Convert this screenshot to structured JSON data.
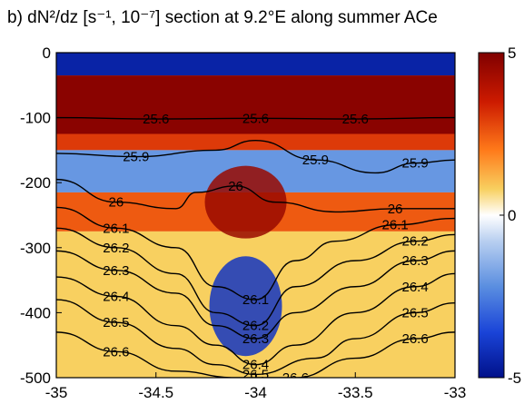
{
  "chart_data": {
    "type": "heatmap",
    "panel": "b)",
    "title": "b) dN²/dz [s⁻¹, 10⁻⁷] section at 9.2°E along summer ACe",
    "xlim": [
      -35,
      -33
    ],
    "ylim": [
      -500,
      0
    ],
    "x_ticks": [
      -35,
      -34.5,
      -34,
      -33.5,
      -33
    ],
    "y_ticks": [
      0,
      -100,
      -200,
      -300,
      -400,
      -500
    ],
    "colorbar": {
      "min": -5,
      "max": 5,
      "ticks": [
        5,
        0,
        -5
      ],
      "colormap": "blue-white-red"
    },
    "field_bands": [
      {
        "depth": [
          0,
          -35
        ],
        "value": -4.5
      },
      {
        "depth": [
          -35,
          -125
        ],
        "value": 4.8
      },
      {
        "depth": [
          -125,
          -150
        ],
        "value": 3.0
      },
      {
        "depth": [
          -150,
          -215
        ],
        "value": -2.0
      },
      {
        "depth": [
          -215,
          -275
        ],
        "value": 2.5
      },
      {
        "depth": [
          -275,
          -500
        ],
        "value": 0.8
      }
    ],
    "field_features": [
      {
        "label": "central positive dome",
        "x": -34.05,
        "depth": -230,
        "value": 4.5
      },
      {
        "label": "central negative core",
        "x": -34.05,
        "depth": -390,
        "value": -4.0
      }
    ],
    "contours": [
      {
        "label": "25.6",
        "x": [
          -35,
          -34.5,
          -34,
          -33.5,
          -33
        ],
        "y": [
          -100,
          -102,
          -101,
          -102,
          -100
        ]
      },
      {
        "label": "25.9",
        "x": [
          -35,
          -34.6,
          -34.2,
          -34.0,
          -33.7,
          -33.4,
          -33.2,
          -33
        ],
        "y": [
          -155,
          -160,
          -150,
          -135,
          -165,
          -185,
          -170,
          -165
        ]
      },
      {
        "label": "26",
        "x": [
          -35,
          -34.7,
          -34.4,
          -34.3,
          -34.1,
          -33.9,
          -33.6,
          -33.3,
          -33
        ],
        "y": [
          -195,
          -230,
          -240,
          -215,
          -205,
          -230,
          -245,
          -240,
          -240
        ]
      },
      {
        "label": "26.1",
        "x": [
          -35,
          -34.7,
          -34.4,
          -34.2,
          -34.0,
          -33.8,
          -33.6,
          -33.3,
          -33
        ],
        "y": [
          -238,
          -270,
          -300,
          -360,
          -380,
          -320,
          -290,
          -265,
          -255
        ]
      },
      {
        "label": "26.2",
        "x": [
          -35,
          -34.7,
          -34.4,
          -34.2,
          -34.0,
          -33.8,
          -33.5,
          -33.2,
          -33
        ],
        "y": [
          -270,
          -300,
          -340,
          -400,
          -420,
          -360,
          -320,
          -290,
          -280
        ]
      },
      {
        "label": "26.3",
        "x": [
          -35,
          -34.7,
          -34.4,
          -34.2,
          -34.0,
          -33.8,
          -33.5,
          -33.2,
          -33
        ],
        "y": [
          -305,
          -335,
          -370,
          -420,
          -440,
          -400,
          -360,
          -320,
          -305
        ]
      },
      {
        "label": "26.4",
        "x": [
          -35,
          -34.7,
          -34.4,
          -34.2,
          -34.0,
          -33.8,
          -33.5,
          -33.2,
          -33
        ],
        "y": [
          -345,
          -375,
          -420,
          -450,
          -480,
          -450,
          -400,
          -360,
          -340
        ]
      },
      {
        "label": "26.5",
        "x": [
          -35,
          -34.7,
          -34.4,
          -34.2,
          -34.0,
          -33.7,
          -33.5,
          -33.2,
          -33
        ],
        "y": [
          -380,
          -415,
          -455,
          -480,
          -495,
          -470,
          -440,
          -400,
          -385
        ]
      },
      {
        "label": "26.6",
        "x": [
          -35,
          -34.7,
          -34.4,
          -34.1,
          -33.8,
          -33.5,
          -33.2,
          -33
        ],
        "y": [
          -430,
          -460,
          -490,
          -500,
          -500,
          -470,
          -440,
          -430
        ]
      }
    ]
  }
}
